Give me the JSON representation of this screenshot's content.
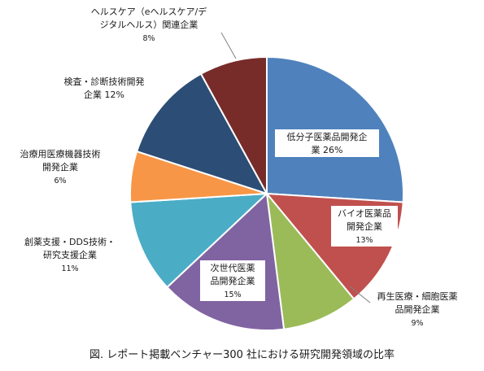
{
  "chart_data": {
    "type": "pie",
    "start_angle_deg": 0,
    "direction": "clockwise",
    "slices": [
      {
        "label_lines": [
          "低分子医薬品開発企",
          "業  26%"
        ],
        "value": 26,
        "color": "#4f81bd"
      },
      {
        "label_lines": [
          "バイオ医薬品",
          "開発企業",
          "13%"
        ],
        "value": 13,
        "color": "#c0504d"
      },
      {
        "label_lines": [
          "再生医療・細胞医薬",
          "品開発企業",
          "9%"
        ],
        "value": 9,
        "color": "#9bbb59"
      },
      {
        "label_lines": [
          "次世代医薬",
          "品開発企業",
          "15%"
        ],
        "value": 15,
        "color": "#8064a2"
      },
      {
        "label_lines": [
          "創薬支援・DDS技術・",
          "研究支援企業",
          "11%"
        ],
        "value": 11,
        "color": "#4bacc6"
      },
      {
        "label_lines": [
          "治療用医療機器技術",
          "開発企業",
          "6%"
        ],
        "value": 6,
        "color": "#f79646"
      },
      {
        "label_lines": [
          "検査・診断技術開発",
          "企業  12%"
        ],
        "value": 12,
        "color": "#2c4d75"
      },
      {
        "label_lines": [
          "ヘルスケア（eヘルスケア/デ",
          "ジタルヘルス）関連企業",
          "8%"
        ],
        "value": 8,
        "color": "#772c2a"
      }
    ]
  },
  "caption": "図. レポート掲載ベンチャー300 社における研究開発領域の比率"
}
